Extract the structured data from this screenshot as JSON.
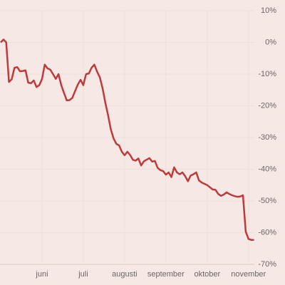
{
  "chart_data": {
    "type": "line",
    "categories": [
      null,
      null,
      null,
      null,
      null,
      null,
      null,
      null,
      null,
      null,
      null,
      null,
      null,
      null,
      null,
      "juni",
      null,
      null,
      null,
      null,
      null,
      null,
      null,
      null,
      null,
      null,
      null,
      null,
      null,
      null,
      "juli",
      null,
      null,
      null,
      null,
      null,
      null,
      null,
      null,
      null,
      null,
      null,
      null,
      null,
      null,
      "augusti",
      null,
      null,
      null,
      null,
      null,
      null,
      null,
      null,
      null,
      null,
      null,
      null,
      null,
      null,
      "september",
      null,
      null,
      null,
      null,
      null,
      null,
      null,
      null,
      null,
      null,
      null,
      null,
      null,
      null,
      "oktober",
      null,
      null,
      null,
      null,
      null,
      null,
      null,
      null,
      null,
      null,
      null,
      null,
      null,
      null,
      "november",
      null,
      null
    ],
    "values": [
      0,
      0.9,
      0,
      -12.5,
      -11.6,
      -8,
      -7.8,
      -9.1,
      -9,
      -8.8,
      -12.7,
      -12.9,
      -12,
      -14.1,
      -13.5,
      -11.5,
      -7,
      -8.2,
      -8.6,
      -10,
      -11.5,
      -10,
      -13.5,
      -16,
      -18.3,
      -18.2,
      -17.5,
      -15.4,
      -13.3,
      -11.8,
      -13.5,
      -10,
      -9.8,
      -8,
      -7,
      -9.2,
      -11,
      -14.5,
      -19,
      -23,
      -27.5,
      -30.3,
      -32,
      -32.5,
      -34.5,
      -35.6,
      -34.5,
      -35.5,
      -37,
      -37.3,
      -36.6,
      -38.8,
      -37.5,
      -37,
      -36.5,
      -37.6,
      -37.4,
      -39.6,
      -40.3,
      -40.6,
      -41.7,
      -41,
      -42.5,
      -39.4,
      -41,
      -41.6,
      -41,
      -42.2,
      -43.8,
      -42,
      -41.6,
      -41,
      -43.5,
      -44.2,
      -44.6,
      -45,
      -45.7,
      -46.4,
      -46.5,
      -47.8,
      -48.4,
      -48,
      -47.3,
      -47.8,
      -48.2,
      -48.5,
      -48.7,
      -48.6,
      -48.2,
      -59.7,
      -62,
      -62.3,
      -62.3
    ],
    "color": "#c0393b",
    "ylim": [
      -70,
      10
    ],
    "yticks": [
      {
        "value": 10,
        "label": "10%"
      },
      {
        "value": 0,
        "label": "0%"
      },
      {
        "value": -10,
        "label": "-10%"
      },
      {
        "value": -20,
        "label": "-20%"
      },
      {
        "value": -30,
        "label": "-30%"
      },
      {
        "value": -40,
        "label": "-40%"
      },
      {
        "value": -50,
        "label": "-50%"
      },
      {
        "value": -60,
        "label": "-60%"
      },
      {
        "value": -70,
        "label": "-70%"
      }
    ],
    "grid": true
  }
}
